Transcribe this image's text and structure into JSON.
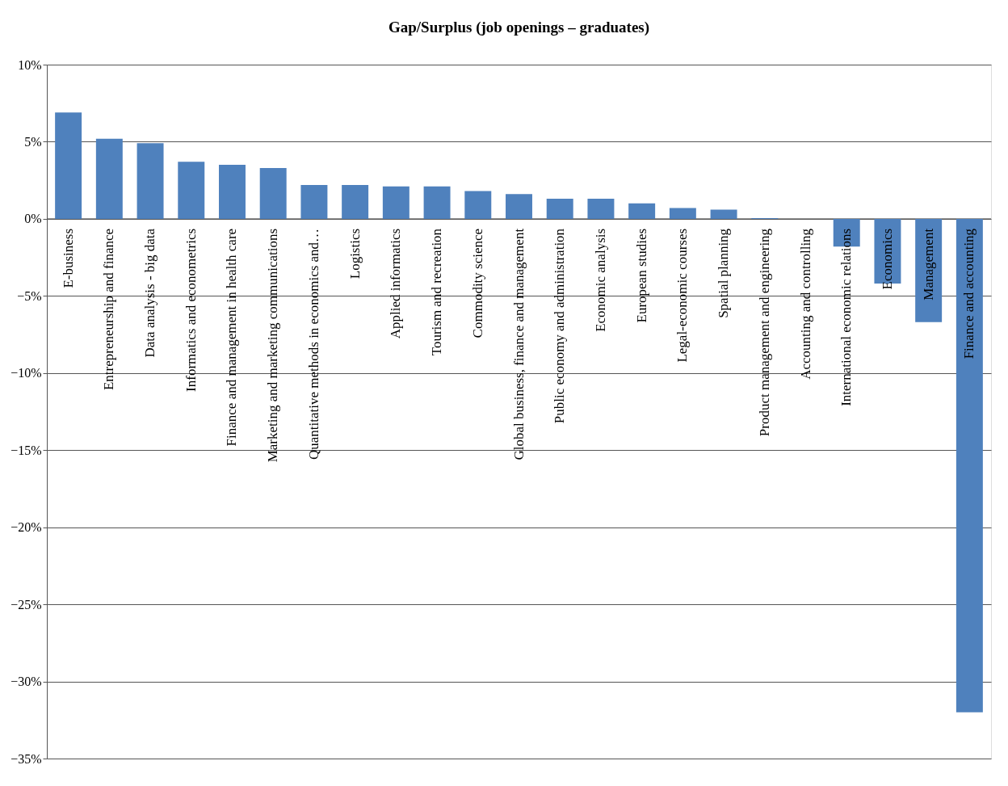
{
  "chart_data": {
    "type": "bar",
    "title": "Gap/Surplus (job openings – graduates)",
    "categories": [
      "E-business",
      "Entrepreneurship and finance",
      "Data analysis - big data",
      "Informatics and econometrics",
      "Finance and management in health care",
      "Marketing and marketing communications",
      "Quantitative methods in economics and…",
      "Logistics",
      "Applied informatics",
      "Tourism and recreation",
      "Commodity science",
      "Global business, finance and management",
      "Public economy and administration",
      "Economic analysis",
      "European studies",
      "Legal-economic courses",
      "Spatial planning",
      "Product management and engineering",
      "Accounting and controlling",
      "International economic relations",
      "Economics",
      "Management",
      "Finance and accounting"
    ],
    "values": [
      6.9,
      5.2,
      4.9,
      3.7,
      3.5,
      3.3,
      2.2,
      2.2,
      2.1,
      2.1,
      1.8,
      1.6,
      1.3,
      1.3,
      1.0,
      0.7,
      0.6,
      0.05,
      0,
      -1.8,
      -4.2,
      -6.7,
      -32.0
    ],
    "color": "#4f81bd",
    "ylim": [
      -35,
      10
    ],
    "yticks": [
      {
        "value": 10,
        "label": "10%"
      },
      {
        "value": 5,
        "label": "5%"
      },
      {
        "value": 0,
        "label": "0%"
      },
      {
        "value": -5,
        "label": "−5%"
      },
      {
        "value": -10,
        "label": "−10%"
      },
      {
        "value": -15,
        "label": "−15%"
      },
      {
        "value": -20,
        "label": "−20%"
      },
      {
        "value": -25,
        "label": "−25%"
      },
      {
        "value": -30,
        "label": "−30%"
      },
      {
        "value": -35,
        "label": "−35%"
      }
    ],
    "grid": "y",
    "tick_labels": "y"
  }
}
